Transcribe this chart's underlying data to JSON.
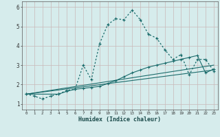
{
  "xlabel": "Humidex (Indice chaleur)",
  "background_color": "#d6ecec",
  "grid_color": "#c8dede",
  "line_color": "#1a6b6b",
  "xlim": [
    -0.5,
    23.5
  ],
  "ylim": [
    0.7,
    6.3
  ],
  "xtick_labels": [
    "0",
    "1",
    "2",
    "3",
    "4",
    "5",
    "6",
    "7",
    "8",
    "9",
    "10",
    "11",
    "12",
    "13",
    "14",
    "15",
    "16",
    "17",
    "18",
    "19",
    "20",
    "21",
    "22",
    "23"
  ],
  "ytick_values": [
    1,
    2,
    3,
    4,
    5,
    6
  ],
  "series1_x": [
    0,
    1,
    2,
    3,
    4,
    5,
    6,
    7,
    8,
    9,
    10,
    11,
    12,
    13,
    14,
    15,
    16,
    17,
    18,
    19,
    20,
    21,
    22,
    23
  ],
  "series1_y": [
    1.5,
    1.4,
    1.25,
    1.4,
    1.5,
    1.7,
    1.75,
    3.0,
    2.25,
    4.1,
    5.1,
    5.4,
    5.35,
    5.85,
    5.35,
    4.6,
    4.4,
    3.8,
    3.3,
    3.55,
    2.5,
    3.3,
    3.3,
    2.7
  ],
  "series2_x": [
    0,
    4,
    5,
    6,
    7,
    8,
    9,
    10,
    11,
    12,
    13,
    14,
    15,
    16,
    17,
    18,
    19,
    20,
    21,
    22,
    23
  ],
  "series2_y": [
    1.5,
    1.5,
    1.65,
    1.75,
    1.8,
    1.85,
    1.9,
    2.05,
    2.2,
    2.4,
    2.6,
    2.75,
    2.9,
    3.0,
    3.1,
    3.2,
    3.3,
    3.4,
    3.5,
    2.6,
    2.8
  ],
  "series3_x": [
    0,
    23
  ],
  "series3_y": [
    1.5,
    2.75
  ],
  "series4_x": [
    0,
    23
  ],
  "series4_y": [
    1.5,
    3.0
  ]
}
